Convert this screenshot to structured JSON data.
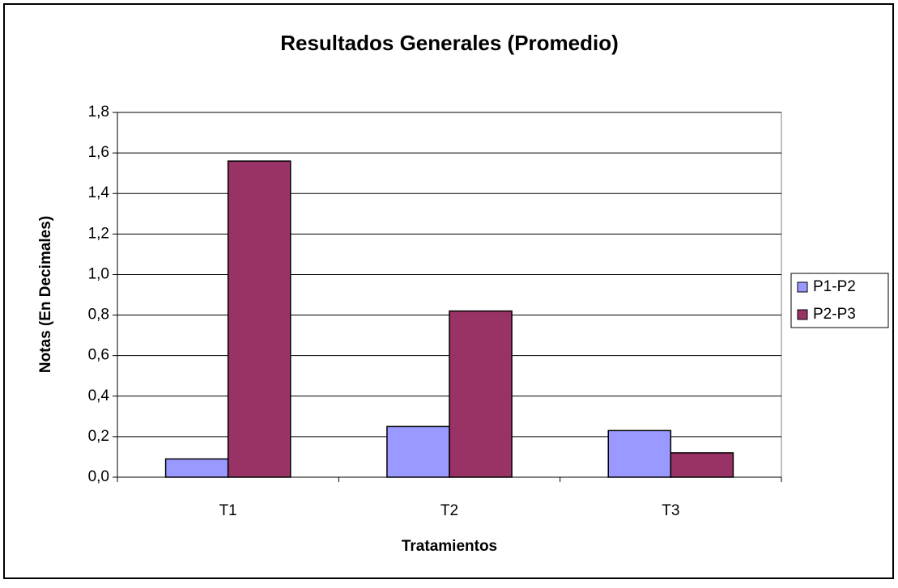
{
  "chart_data": {
    "type": "bar",
    "title": "Resultados Generales (Promedio)",
    "x_label": "Tratamientos",
    "y_label": "Notas (En Decimales)",
    "categories": [
      "T1",
      "T2",
      "T3"
    ],
    "series": [
      {
        "name": "P1-P2",
        "color": "#9999ff",
        "values": [
          0.09,
          0.25,
          0.23
        ]
      },
      {
        "name": "P2-P3",
        "color": "#993366",
        "values": [
          1.56,
          0.82,
          0.12
        ]
      }
    ],
    "ylim": [
      0,
      1.8
    ],
    "yticks": [
      {
        "value": 0,
        "label": "0,0"
      },
      {
        "value": 0.2,
        "label": "0,2"
      },
      {
        "value": 0.4,
        "label": "0,4"
      },
      {
        "value": 0.6,
        "label": "0,6"
      },
      {
        "value": 0.8,
        "label": "0,8"
      },
      {
        "value": 1.0,
        "label": "1,0"
      },
      {
        "value": 1.2,
        "label": "1,2"
      },
      {
        "value": 1.4,
        "label": "1,4"
      },
      {
        "value": 1.6,
        "label": "1,6"
      },
      {
        "value": 1.8,
        "label": "1,8"
      }
    ],
    "grid": true,
    "legend": "right"
  }
}
